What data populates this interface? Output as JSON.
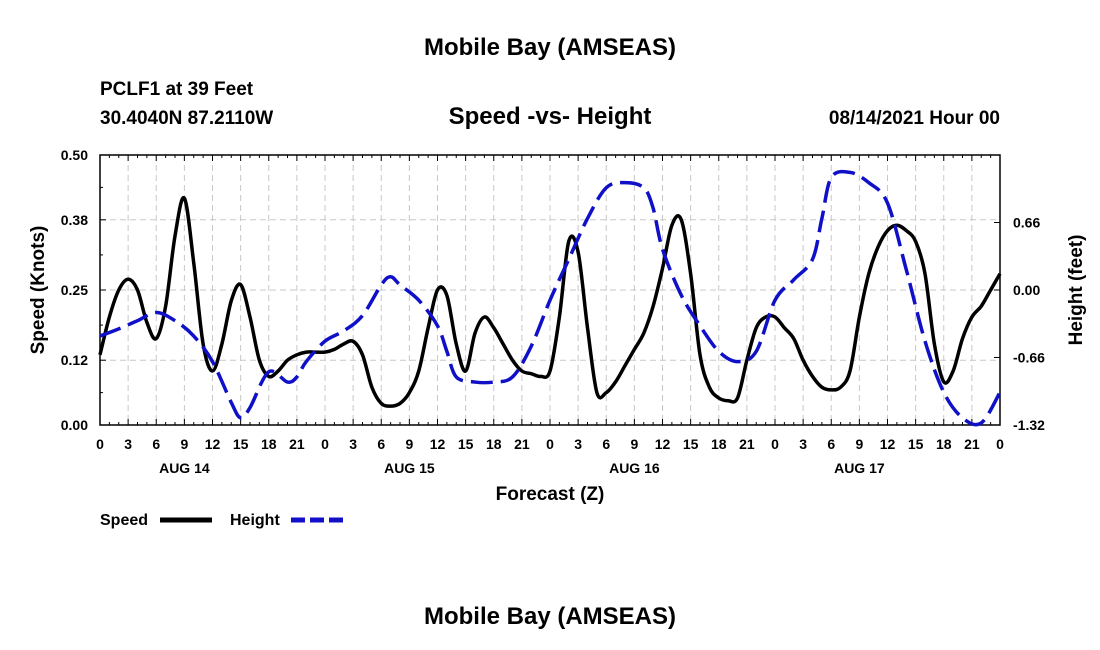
{
  "header": {
    "title": "Mobile Bay (AMSEAS)",
    "station": "PCLF1 at 39 Feet",
    "location": "30.4040N  87.2110W",
    "datetime": "08/14/2021 Hour 00",
    "footer_title": "Mobile Bay (AMSEAS)"
  },
  "colors": {
    "speed": "#000000",
    "height": "#1010c8",
    "grid": "#c8c8c8"
  },
  "chart_data": {
    "type": "line",
    "title": "Speed -vs- Height",
    "xlabel": "Forecast (Z)",
    "ylabel": "Speed (Knots)",
    "y2label": "Height (feet)",
    "x_range_hours": [
      0,
      96
    ],
    "ylim": [
      0,
      0.5
    ],
    "y2lim": [
      -1.32,
      1.32
    ],
    "yticks": [
      "0.00",
      "0.12",
      "0.25",
      "0.38",
      "0.50"
    ],
    "y2ticks": [
      "-1.32",
      "-0.66",
      "0.00",
      "0.66"
    ],
    "y2tick_values": [
      -1.32,
      -0.66,
      0.0,
      0.66
    ],
    "xtick_labels": [
      "0",
      "3",
      "6",
      "9",
      "12",
      "15",
      "18",
      "21",
      "0",
      "3",
      "6",
      "9",
      "12",
      "15",
      "18",
      "21",
      "0",
      "3",
      "6",
      "9",
      "12",
      "15",
      "18",
      "21",
      "0",
      "3",
      "6",
      "9",
      "12",
      "15",
      "18",
      "21",
      "0"
    ],
    "day_labels": [
      {
        "label": "AUG 14",
        "hour": 9
      },
      {
        "label": "AUG 15",
        "hour": 33
      },
      {
        "label": "AUG 16",
        "hour": 57
      },
      {
        "label": "AUG 17",
        "hour": 81
      }
    ],
    "legend": [
      "Speed",
      "Height"
    ],
    "series": [
      {
        "name": "Speed",
        "axis": "left",
        "style": "solid",
        "points": [
          [
            0,
            0.13
          ],
          [
            1,
            0.2
          ],
          [
            2,
            0.25
          ],
          [
            3,
            0.27
          ],
          [
            4,
            0.25
          ],
          [
            5,
            0.19
          ],
          [
            6,
            0.16
          ],
          [
            7,
            0.22
          ],
          [
            8,
            0.35
          ],
          [
            9,
            0.42
          ],
          [
            10,
            0.3
          ],
          [
            11,
            0.15
          ],
          [
            12,
            0.1
          ],
          [
            13,
            0.15
          ],
          [
            14,
            0.23
          ],
          [
            15,
            0.26
          ],
          [
            16,
            0.2
          ],
          [
            17,
            0.12
          ],
          [
            18,
            0.09
          ],
          [
            19,
            0.1
          ],
          [
            20,
            0.12
          ],
          [
            21,
            0.13
          ],
          [
            22,
            0.135
          ],
          [
            23,
            0.135
          ],
          [
            24,
            0.135
          ],
          [
            25,
            0.14
          ],
          [
            26,
            0.15
          ],
          [
            27,
            0.155
          ],
          [
            28,
            0.13
          ],
          [
            29,
            0.07
          ],
          [
            30,
            0.04
          ],
          [
            31,
            0.035
          ],
          [
            32,
            0.04
          ],
          [
            33,
            0.06
          ],
          [
            34,
            0.1
          ],
          [
            35,
            0.18
          ],
          [
            36,
            0.25
          ],
          [
            37,
            0.24
          ],
          [
            38,
            0.15
          ],
          [
            39,
            0.1
          ],
          [
            40,
            0.17
          ],
          [
            41,
            0.2
          ],
          [
            42,
            0.18
          ],
          [
            43,
            0.15
          ],
          [
            44,
            0.12
          ],
          [
            45,
            0.1
          ],
          [
            46,
            0.095
          ],
          [
            47,
            0.09
          ],
          [
            48,
            0.1
          ],
          [
            49,
            0.2
          ],
          [
            50,
            0.34
          ],
          [
            51,
            0.32
          ],
          [
            52,
            0.18
          ],
          [
            53,
            0.06
          ],
          [
            54,
            0.06
          ],
          [
            55,
            0.08
          ],
          [
            56,
            0.11
          ],
          [
            57,
            0.14
          ],
          [
            58,
            0.17
          ],
          [
            59,
            0.22
          ],
          [
            60,
            0.29
          ],
          [
            61,
            0.37
          ],
          [
            62,
            0.38
          ],
          [
            63,
            0.28
          ],
          [
            64,
            0.13
          ],
          [
            65,
            0.07
          ],
          [
            66,
            0.05
          ],
          [
            67,
            0.045
          ],
          [
            68,
            0.05
          ],
          [
            69,
            0.12
          ],
          [
            70,
            0.18
          ],
          [
            71,
            0.2
          ],
          [
            72,
            0.2
          ],
          [
            73,
            0.18
          ],
          [
            74,
            0.16
          ],
          [
            75,
            0.12
          ],
          [
            76,
            0.09
          ],
          [
            77,
            0.07
          ],
          [
            78,
            0.065
          ],
          [
            79,
            0.07
          ],
          [
            80,
            0.1
          ],
          [
            81,
            0.2
          ],
          [
            82,
            0.28
          ],
          [
            83,
            0.33
          ],
          [
            84,
            0.36
          ],
          [
            85,
            0.37
          ],
          [
            86,
            0.36
          ],
          [
            87,
            0.34
          ],
          [
            88,
            0.28
          ],
          [
            89,
            0.15
          ],
          [
            90,
            0.08
          ],
          [
            91,
            0.1
          ],
          [
            92,
            0.16
          ],
          [
            93,
            0.2
          ],
          [
            94,
            0.22
          ],
          [
            95,
            0.25
          ],
          [
            96,
            0.28
          ]
        ]
      },
      {
        "name": "Height",
        "axis": "right",
        "style": "dashed",
        "points": [
          [
            0,
            -0.45
          ],
          [
            2,
            -0.38
          ],
          [
            4,
            -0.3
          ],
          [
            6,
            -0.22
          ],
          [
            8,
            -0.3
          ],
          [
            10,
            -0.45
          ],
          [
            12,
            -0.7
          ],
          [
            14,
            -1.1
          ],
          [
            15,
            -1.25
          ],
          [
            16,
            -1.15
          ],
          [
            18,
            -0.8
          ],
          [
            20,
            -0.9
          ],
          [
            21,
            -0.85
          ],
          [
            22,
            -0.7
          ],
          [
            24,
            -0.5
          ],
          [
            26,
            -0.4
          ],
          [
            28,
            -0.25
          ],
          [
            30,
            0.05
          ],
          [
            31,
            0.13
          ],
          [
            32,
            0.05
          ],
          [
            34,
            -0.1
          ],
          [
            36,
            -0.35
          ],
          [
            37,
            -0.6
          ],
          [
            38,
            -0.85
          ],
          [
            40,
            -0.9
          ],
          [
            42,
            -0.9
          ],
          [
            44,
            -0.85
          ],
          [
            46,
            -0.55
          ],
          [
            48,
            -0.1
          ],
          [
            50,
            0.3
          ],
          [
            52,
            0.7
          ],
          [
            54,
            1.0
          ],
          [
            56,
            1.05
          ],
          [
            58,
            1.0
          ],
          [
            59,
            0.8
          ],
          [
            60,
            0.4
          ],
          [
            62,
            -0.05
          ],
          [
            64,
            -0.35
          ],
          [
            66,
            -0.6
          ],
          [
            68,
            -0.7
          ],
          [
            70,
            -0.6
          ],
          [
            72,
            -0.1
          ],
          [
            74,
            0.1
          ],
          [
            76,
            0.3
          ],
          [
            77,
            0.7
          ],
          [
            78,
            1.1
          ],
          [
            80,
            1.15
          ],
          [
            82,
            1.05
          ],
          [
            84,
            0.85
          ],
          [
            86,
            0.2
          ],
          [
            88,
            -0.5
          ],
          [
            90,
            -1.0
          ],
          [
            92,
            -1.25
          ],
          [
            94,
            -1.3
          ],
          [
            96,
            -1.0
          ]
        ]
      }
    ]
  }
}
